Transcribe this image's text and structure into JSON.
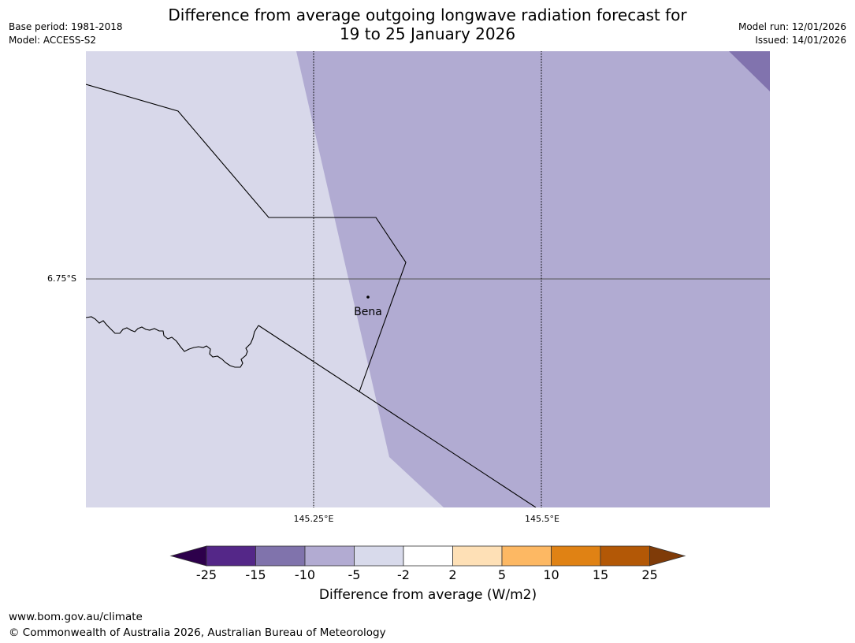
{
  "header": {
    "title_line1": "Difference from average outgoing longwave radiation forecast for",
    "title_line2": "19 to 25 January 2026",
    "base_period": "Base period: 1981-2018",
    "model": "Model: ACCESS-S2",
    "model_run": "Model run: 12/01/2026",
    "issued": "Issued: 14/01/2026"
  },
  "map": {
    "lat_label": "6.75°S",
    "lon_labels": [
      "145.25°E",
      "145.5°E"
    ],
    "place": "Bena",
    "colors": {
      "class_neg5_neg2": "#d8d8ea",
      "class_neg10_neg5": "#b1abd2",
      "class_neg15_neg10": "#8173ae",
      "boundary": "#000000",
      "gridline": "#000000"
    }
  },
  "colorbar": {
    "title": "Difference from average (W/m2)",
    "ticks": [
      "-25",
      "-15",
      "-10",
      "-5",
      "-2",
      "2",
      "5",
      "10",
      "15",
      "25"
    ],
    "colors": [
      "#542788",
      "#8073ac",
      "#b2abd2",
      "#d8daeb",
      "#ffffff",
      "#fee0b6",
      "#fdb863",
      "#e08214",
      "#b35806"
    ],
    "extend_low_color": "#2d004b",
    "extend_high_color": "#7f3b08"
  },
  "footer": {
    "url": "www.bom.gov.au/climate",
    "copyright": "© Commonwealth of Australia 2026, Australian Bureau of Meteorology"
  }
}
